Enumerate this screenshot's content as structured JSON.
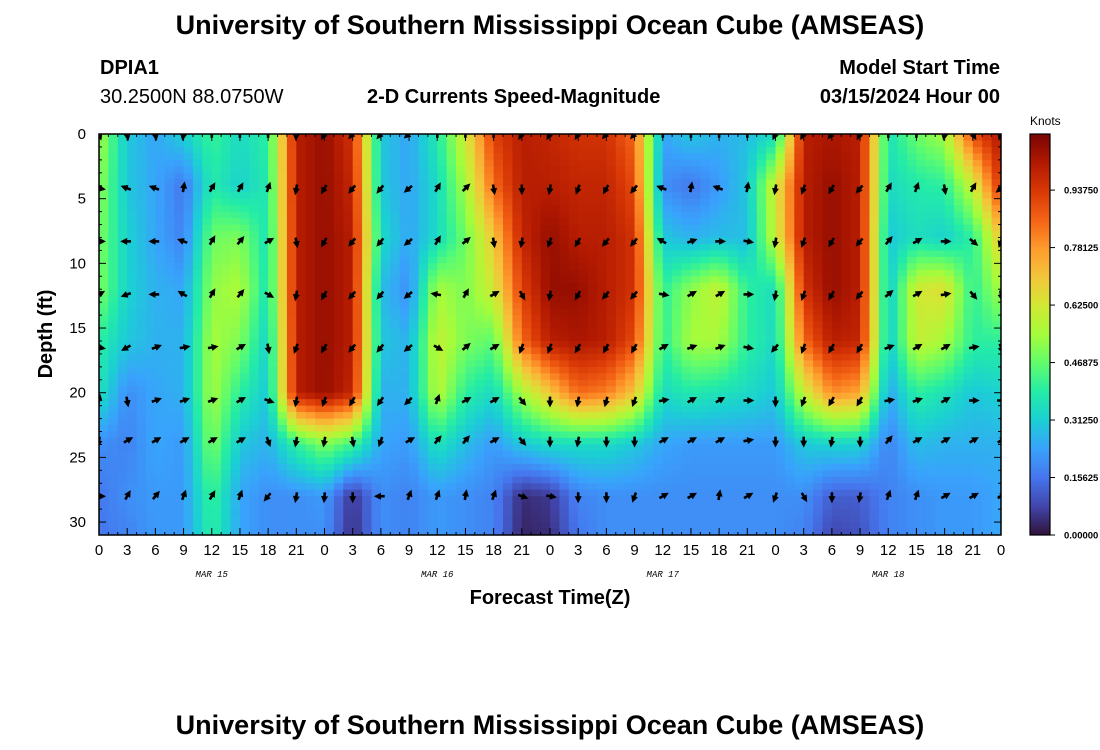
{
  "page": {
    "title": "University of Southern Mississippi Ocean Cube (AMSEAS)",
    "footer_title": "University of Southern Mississippi Ocean Cube (AMSEAS)"
  },
  "header": {
    "station": "DPIA1",
    "coords": "30.2500N  88.0750W",
    "product": "2-D Currents Speed-Magnitude",
    "model_label": "Model Start Time",
    "model_time": "03/15/2024 Hour 00"
  },
  "chart_data": {
    "type": "heatmap",
    "title": "2-D Currents Speed-Magnitude",
    "xlabel": "Forecast Time(Z)",
    "ylabel": "Depth (ft)",
    "x_ticks": [
      "0",
      "3",
      "6",
      "9",
      "12",
      "15",
      "18",
      "21",
      "0",
      "3",
      "6",
      "9",
      "12",
      "15",
      "18",
      "21",
      "0",
      "3",
      "6",
      "9",
      "12",
      "15",
      "18",
      "21",
      "0",
      "3",
      "6",
      "9",
      "12",
      "15",
      "18",
      "21",
      "0"
    ],
    "x_hours": [
      0,
      3,
      6,
      9,
      12,
      15,
      18,
      21,
      24,
      27,
      30,
      33,
      36,
      39,
      42,
      45,
      48,
      51,
      54,
      57,
      60,
      63,
      66,
      69,
      72,
      75,
      78,
      81,
      84,
      87,
      90,
      93,
      96
    ],
    "xlim": [
      0,
      96
    ],
    "date_labels": [
      {
        "label": "MAR 15",
        "hour": 12
      },
      {
        "label": "MAR 16",
        "hour": 36
      },
      {
        "label": "MAR 17",
        "hour": 60
      },
      {
        "label": "MAR 18",
        "hour": 84
      }
    ],
    "y_ticks": [
      "0",
      "5",
      "10",
      "15",
      "20",
      "25",
      "30"
    ],
    "y_values": [
      0,
      5,
      10,
      15,
      20,
      25,
      30
    ],
    "ylim": [
      0,
      31
    ],
    "colorbar": {
      "label": "Knots",
      "tick_labels": [
        "0.00000",
        "0.15625",
        "0.31250",
        "0.46875",
        "0.62500",
        "0.78125",
        "0.93750"
      ],
      "tick_values": [
        0.0,
        0.15625,
        0.3125,
        0.46875,
        0.625,
        0.78125,
        0.9375
      ],
      "range": [
        0,
        1.09
      ],
      "colormap": [
        "#30123b",
        "#4145ab",
        "#4675ed",
        "#39a2fc",
        "#1bcfd4",
        "#24eca6",
        "#61fc6c",
        "#a4fc3b",
        "#d1e834",
        "#f3c63a",
        "#fe9b2d",
        "#f36315",
        "#d93806",
        "#b11901",
        "#7a0402"
      ]
    },
    "grid": {
      "times": [
        0,
        3,
        6,
        9,
        12,
        15,
        18,
        21,
        24,
        27,
        30,
        33,
        36,
        39,
        42,
        45,
        48,
        51,
        54,
        57,
        60,
        63,
        66,
        69,
        72,
        75,
        78,
        81,
        84,
        87,
        90,
        93,
        96
      ],
      "depths": [
        0,
        4,
        8,
        12,
        16,
        20,
        24,
        28,
        31
      ],
      "speed": [
        [
          0.55,
          0.3,
          0.24,
          0.32,
          0.42,
          0.34,
          0.4,
          1.0,
          1.05,
          0.95,
          0.3,
          0.24,
          0.38,
          0.62,
          0.92,
          1.0,
          0.98,
          0.95,
          0.95,
          0.85,
          0.24,
          0.3,
          0.26,
          0.28,
          0.34,
          1.0,
          1.02,
          1.0,
          0.36,
          0.48,
          0.55,
          0.9,
          1.02
        ],
        [
          0.52,
          0.3,
          0.24,
          0.16,
          0.38,
          0.32,
          0.38,
          1.0,
          1.05,
          0.98,
          0.3,
          0.24,
          0.34,
          0.55,
          0.85,
          1.0,
          1.0,
          0.98,
          0.98,
          0.9,
          0.2,
          0.16,
          0.22,
          0.3,
          0.62,
          1.0,
          1.05,
          1.0,
          0.34,
          0.38,
          0.4,
          0.6,
          0.95
        ],
        [
          0.5,
          0.32,
          0.24,
          0.18,
          0.48,
          0.5,
          0.36,
          1.0,
          1.05,
          1.0,
          0.34,
          0.24,
          0.34,
          0.48,
          0.7,
          0.98,
          1.05,
          1.0,
          1.0,
          0.95,
          0.3,
          0.26,
          0.28,
          0.28,
          0.6,
          1.0,
          1.05,
          1.0,
          0.3,
          0.35,
          0.32,
          0.4,
          0.7
        ],
        [
          0.5,
          0.32,
          0.26,
          0.24,
          0.52,
          0.56,
          0.36,
          1.0,
          1.05,
          1.0,
          0.28,
          0.2,
          0.55,
          0.5,
          0.62,
          0.92,
          1.05,
          1.05,
          1.0,
          0.95,
          0.4,
          0.52,
          0.6,
          0.4,
          0.35,
          0.95,
          1.05,
          1.0,
          0.3,
          0.62,
          0.65,
          0.4,
          0.55
        ],
        [
          0.4,
          0.3,
          0.26,
          0.26,
          0.55,
          0.5,
          0.32,
          1.0,
          1.05,
          1.0,
          0.3,
          0.26,
          0.6,
          0.5,
          0.46,
          0.85,
          1.0,
          1.02,
          1.0,
          0.9,
          0.4,
          0.55,
          0.55,
          0.4,
          0.34,
          0.85,
          1.0,
          0.98,
          0.3,
          0.6,
          0.55,
          0.4,
          0.4
        ],
        [
          0.36,
          0.2,
          0.24,
          0.26,
          0.55,
          0.4,
          0.3,
          1.0,
          1.05,
          0.98,
          0.26,
          0.26,
          0.58,
          0.4,
          0.34,
          0.55,
          0.7,
          0.85,
          0.82,
          0.7,
          0.34,
          0.38,
          0.36,
          0.34,
          0.3,
          0.6,
          0.8,
          0.76,
          0.24,
          0.4,
          0.36,
          0.3,
          0.32
        ],
        [
          0.2,
          0.18,
          0.24,
          0.22,
          0.5,
          0.3,
          0.26,
          0.4,
          0.5,
          0.42,
          0.24,
          0.22,
          0.36,
          0.28,
          0.22,
          0.3,
          0.34,
          0.34,
          0.34,
          0.3,
          0.24,
          0.22,
          0.22,
          0.22,
          0.22,
          0.3,
          0.32,
          0.32,
          0.18,
          0.28,
          0.26,
          0.26,
          0.26
        ],
        [
          0.16,
          0.2,
          0.22,
          0.22,
          0.42,
          0.24,
          0.2,
          0.2,
          0.22,
          0.05,
          0.2,
          0.18,
          0.22,
          0.2,
          0.18,
          0.04,
          0.06,
          0.18,
          0.2,
          0.2,
          0.2,
          0.2,
          0.2,
          0.2,
          0.2,
          0.2,
          0.12,
          0.12,
          0.18,
          0.2,
          0.22,
          0.22,
          0.24
        ],
        [
          0.16,
          0.18,
          0.22,
          0.22,
          0.4,
          0.24,
          0.2,
          0.2,
          0.2,
          0.04,
          0.2,
          0.18,
          0.22,
          0.2,
          0.18,
          0.03,
          0.04,
          0.16,
          0.2,
          0.2,
          0.2,
          0.2,
          0.2,
          0.2,
          0.2,
          0.18,
          0.08,
          0.1,
          0.18,
          0.2,
          0.22,
          0.22,
          0.24
        ]
      ]
    },
    "vectors": {
      "times": [
        0,
        3,
        6,
        9,
        12,
        15,
        18,
        21,
        24,
        27,
        30,
        33,
        36,
        39,
        42,
        45,
        48,
        51,
        54,
        57,
        60,
        63,
        66,
        69,
        72,
        75,
        78,
        81,
        84,
        87,
        90,
        93,
        96
      ],
      "depths": [
        0,
        4.2,
        8.3,
        12.4,
        16.5,
        20.6,
        23.7,
        28
      ],
      "directions_deg": [
        [
          160,
          170,
          170,
          190,
          0,
          0,
          0,
          185,
          210,
          220,
          220,
          230,
          0,
          0,
          0,
          210,
          210,
          210,
          220,
          220,
          0,
          0,
          0,
          0,
          205,
          210,
          220,
          210,
          0,
          0,
          190,
          150,
          200
        ],
        [
          100,
          290,
          290,
          10,
          30,
          30,
          20,
          190,
          210,
          220,
          220,
          230,
          30,
          45,
          170,
          180,
          190,
          200,
          210,
          220,
          290,
          10,
          290,
          10,
          190,
          200,
          210,
          220,
          30,
          20,
          170,
          30,
          230
        ],
        [
          90,
          270,
          270,
          290,
          30,
          40,
          60,
          170,
          210,
          220,
          220,
          230,
          30,
          50,
          170,
          190,
          200,
          210,
          220,
          220,
          300,
          70,
          90,
          100,
          190,
          200,
          210,
          220,
          40,
          60,
          90,
          130,
          200
        ],
        [
          60,
          250,
          270,
          300,
          30,
          40,
          120,
          190,
          210,
          220,
          220,
          230,
          280,
          30,
          60,
          150,
          190,
          210,
          220,
          220,
          100,
          60,
          60,
          90,
          190,
          200,
          210,
          220,
          50,
          60,
          80,
          140,
          170
        ],
        [
          100,
          240,
          70,
          80,
          80,
          60,
          170,
          200,
          210,
          220,
          220,
          230,
          120,
          50,
          60,
          200,
          200,
          210,
          210,
          210,
          60,
          70,
          70,
          100,
          220,
          200,
          210,
          210,
          70,
          60,
          60,
          80,
          160
        ],
        [
          10,
          170,
          70,
          70,
          70,
          60,
          110,
          190,
          200,
          210,
          215,
          225,
          20,
          60,
          60,
          140,
          180,
          190,
          195,
          200,
          80,
          60,
          60,
          90,
          180,
          200,
          210,
          210,
          80,
          70,
          60,
          90,
          90
        ],
        [
          190,
          60,
          60,
          60,
          60,
          60,
          160,
          190,
          190,
          170,
          200,
          60,
          40,
          40,
          60,
          140,
          180,
          190,
          180,
          180,
          60,
          60,
          60,
          80,
          180,
          180,
          190,
          180,
          40,
          60,
          60,
          60,
          60
        ],
        [
          90,
          30,
          40,
          20,
          30,
          20,
          220,
          190,
          185,
          180,
          270,
          20,
          20,
          10,
          20,
          110,
          100,
          180,
          180,
          200,
          60,
          60,
          10,
          60,
          200,
          150,
          180,
          190,
          20,
          20,
          60,
          60,
          60
        ]
      ]
    }
  }
}
